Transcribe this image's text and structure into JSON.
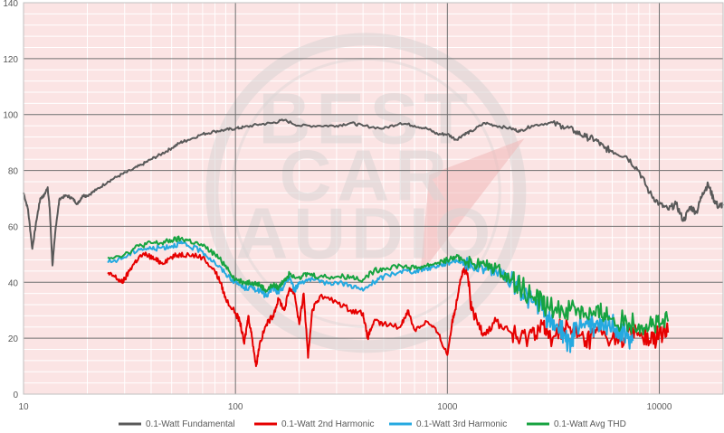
{
  "chart_data": {
    "type": "line",
    "x_scale": "log",
    "xlim": [
      10,
      20000
    ],
    "ylim": [
      0,
      140
    ],
    "x_ticks": [
      "10",
      "100",
      "1000",
      "10000"
    ],
    "y_ticks": [
      "0",
      "20",
      "40",
      "60",
      "80",
      "100",
      "120",
      "140"
    ],
    "grid": true,
    "legend_position": "bottom",
    "colors": {
      "plot_bg": "#fbe4e4",
      "major_grid": "#707070",
      "minor_grid": "#ffffff",
      "watermark": "#d9d4d4"
    },
    "watermark": {
      "lines": [
        "BEST",
        "CAR",
        "AUDIO"
      ]
    },
    "series": [
      {
        "name": "0.1-Watt Fundamental",
        "color": "#595959",
        "points": [
          [
            10,
            72
          ],
          [
            10.5,
            66
          ],
          [
            11,
            52
          ],
          [
            11.5,
            62
          ],
          [
            12,
            70
          ],
          [
            12.5,
            71
          ],
          [
            13,
            74
          ],
          [
            13.3,
            66
          ],
          [
            13.7,
            46
          ],
          [
            14.2,
            60
          ],
          [
            14.8,
            70
          ],
          [
            16,
            71
          ],
          [
            17,
            70
          ],
          [
            18,
            68
          ],
          [
            19,
            71
          ],
          [
            20,
            71
          ],
          [
            22,
            73
          ],
          [
            25,
            76
          ],
          [
            28,
            78
          ],
          [
            32,
            80
          ],
          [
            36,
            82
          ],
          [
            40,
            84
          ],
          [
            45,
            86
          ],
          [
            50,
            88
          ],
          [
            55,
            90
          ],
          [
            60,
            91
          ],
          [
            70,
            93
          ],
          [
            80,
            94
          ],
          [
            90,
            94.5
          ],
          [
            100,
            95
          ],
          [
            110,
            95.5
          ],
          [
            130,
            96.5
          ],
          [
            150,
            97
          ],
          [
            170,
            98
          ],
          [
            200,
            96
          ],
          [
            250,
            96
          ],
          [
            300,
            96
          ],
          [
            350,
            97
          ],
          [
            400,
            96
          ],
          [
            500,
            95
          ],
          [
            600,
            97
          ],
          [
            700,
            96
          ],
          [
            800,
            95
          ],
          [
            900,
            93
          ],
          [
            1000,
            93
          ],
          [
            1100,
            91
          ],
          [
            1200,
            93
          ],
          [
            1300,
            94
          ],
          [
            1500,
            97
          ],
          [
            1700,
            96
          ],
          [
            2000,
            95
          ],
          [
            2200,
            94
          ],
          [
            2500,
            96
          ],
          [
            3000,
            97
          ],
          [
            3500,
            96
          ],
          [
            4000,
            94
          ],
          [
            4500,
            92
          ],
          [
            5000,
            91
          ],
          [
            5500,
            88
          ],
          [
            6000,
            87
          ],
          [
            7000,
            85
          ],
          [
            8000,
            80
          ],
          [
            9000,
            72
          ],
          [
            10000,
            68
          ],
          [
            11000,
            66
          ],
          [
            12000,
            68
          ],
          [
            13000,
            62
          ],
          [
            14000,
            67
          ],
          [
            15000,
            65
          ],
          [
            16000,
            72
          ],
          [
            17000,
            75
          ],
          [
            18000,
            70
          ],
          [
            19000,
            67
          ],
          [
            20000,
            68
          ]
        ]
      },
      {
        "name": "0.1-Watt 2nd Harmonic",
        "color": "#e60000",
        "points": [
          [
            25,
            43
          ],
          [
            27,
            42
          ],
          [
            29,
            40
          ],
          [
            30,
            41
          ],
          [
            32,
            45
          ],
          [
            35,
            49
          ],
          [
            38,
            50
          ],
          [
            42,
            48
          ],
          [
            45,
            47
          ],
          [
            50,
            49
          ],
          [
            55,
            50
          ],
          [
            60,
            50
          ],
          [
            70,
            49
          ],
          [
            80,
            44
          ],
          [
            85,
            40
          ],
          [
            90,
            34
          ],
          [
            100,
            29
          ],
          [
            105,
            26
          ],
          [
            110,
            18
          ],
          [
            115,
            28
          ],
          [
            120,
            20
          ],
          [
            125,
            10
          ],
          [
            130,
            18
          ],
          [
            140,
            25
          ],
          [
            150,
            28
          ],
          [
            160,
            34
          ],
          [
            170,
            30
          ],
          [
            180,
            38
          ],
          [
            190,
            36
          ],
          [
            200,
            25
          ],
          [
            210,
            36
          ],
          [
            220,
            13
          ],
          [
            230,
            30
          ],
          [
            250,
            35
          ],
          [
            300,
            33
          ],
          [
            350,
            30
          ],
          [
            400,
            29
          ],
          [
            420,
            20
          ],
          [
            450,
            26
          ],
          [
            500,
            25
          ],
          [
            600,
            24
          ],
          [
            650,
            30
          ],
          [
            700,
            23
          ],
          [
            800,
            26
          ],
          [
            900,
            22
          ],
          [
            1000,
            14
          ],
          [
            1050,
            25
          ],
          [
            1100,
            32
          ],
          [
            1150,
            41
          ],
          [
            1200,
            45
          ],
          [
            1250,
            42
          ],
          [
            1300,
            30
          ],
          [
            1400,
            25
          ],
          [
            1500,
            22
          ],
          [
            1700,
            26
          ],
          [
            2000,
            22
          ],
          [
            2200,
            19
          ],
          [
            2500,
            22
          ],
          [
            2800,
            25
          ],
          [
            3000,
            20
          ],
          [
            3500,
            24
          ],
          [
            4000,
            22
          ],
          [
            4500,
            19
          ],
          [
            5000,
            22
          ],
          [
            6000,
            20
          ],
          [
            7000,
            21
          ],
          [
            8000,
            22
          ],
          [
            9000,
            19
          ],
          [
            10000,
            21
          ],
          [
            11000,
            22
          ]
        ]
      },
      {
        "name": "0.1-Watt 3rd Harmonic",
        "color": "#25a9e0",
        "points": [
          [
            25,
            47
          ],
          [
            30,
            49
          ],
          [
            35,
            52
          ],
          [
            40,
            52
          ],
          [
            45,
            52.5
          ],
          [
            50,
            53
          ],
          [
            55,
            54
          ],
          [
            60,
            53
          ],
          [
            70,
            51
          ],
          [
            80,
            47
          ],
          [
            90,
            43
          ],
          [
            100,
            40
          ],
          [
            110,
            38
          ],
          [
            120,
            38
          ],
          [
            130,
            37
          ],
          [
            140,
            35
          ],
          [
            150,
            38
          ],
          [
            160,
            36
          ],
          [
            170,
            39
          ],
          [
            180,
            42
          ],
          [
            190,
            37
          ],
          [
            200,
            40
          ],
          [
            220,
            41
          ],
          [
            250,
            40
          ],
          [
            300,
            40
          ],
          [
            350,
            39
          ],
          [
            400,
            37
          ],
          [
            450,
            40
          ],
          [
            500,
            42
          ],
          [
            600,
            44
          ],
          [
            700,
            44
          ],
          [
            800,
            45
          ],
          [
            900,
            46
          ],
          [
            1000,
            47
          ],
          [
            1100,
            48
          ],
          [
            1200,
            47
          ],
          [
            1300,
            46
          ],
          [
            1500,
            45
          ],
          [
            1700,
            44
          ],
          [
            2000,
            40
          ],
          [
            2200,
            38
          ],
          [
            2500,
            33
          ],
          [
            2800,
            30
          ],
          [
            3000,
            26
          ],
          [
            3300,
            25
          ],
          [
            3600,
            21
          ],
          [
            3800,
            15
          ],
          [
            4000,
            25
          ],
          [
            4500,
            26
          ],
          [
            5000,
            24
          ],
          [
            5500,
            23
          ],
          [
            6000,
            26
          ],
          [
            6500,
            22
          ],
          [
            7000,
            21
          ],
          [
            7500,
            19
          ]
        ]
      },
      {
        "name": "0.1-Watt Avg THD",
        "color": "#17a340",
        "points": [
          [
            25,
            49
          ],
          [
            30,
            50
          ],
          [
            35,
            53
          ],
          [
            40,
            54
          ],
          [
            45,
            54
          ],
          [
            50,
            55
          ],
          [
            55,
            55.5
          ],
          [
            60,
            55
          ],
          [
            70,
            53
          ],
          [
            80,
            50
          ],
          [
            90,
            46
          ],
          [
            100,
            41
          ],
          [
            110,
            40
          ],
          [
            120,
            40
          ],
          [
            130,
            39
          ],
          [
            140,
            37
          ],
          [
            150,
            39
          ],
          [
            160,
            38
          ],
          [
            170,
            41
          ],
          [
            180,
            43
          ],
          [
            200,
            42
          ],
          [
            220,
            43
          ],
          [
            250,
            42
          ],
          [
            300,
            42
          ],
          [
            350,
            42
          ],
          [
            400,
            41
          ],
          [
            450,
            44
          ],
          [
            500,
            45
          ],
          [
            600,
            46
          ],
          [
            700,
            45
          ],
          [
            800,
            46
          ],
          [
            900,
            47
          ],
          [
            1000,
            48
          ],
          [
            1100,
            49
          ],
          [
            1200,
            48
          ],
          [
            1300,
            47
          ],
          [
            1500,
            46
          ],
          [
            1700,
            45
          ],
          [
            2000,
            41
          ],
          [
            2200,
            39
          ],
          [
            2500,
            35
          ],
          [
            2800,
            33
          ],
          [
            3000,
            31
          ],
          [
            3500,
            30
          ],
          [
            4000,
            31
          ],
          [
            4500,
            29
          ],
          [
            5000,
            28
          ],
          [
            5500,
            29
          ],
          [
            6000,
            27
          ],
          [
            7000,
            26
          ],
          [
            8000,
            25
          ],
          [
            9000,
            25
          ],
          [
            10000,
            24
          ],
          [
            11000,
            26
          ]
        ]
      }
    ]
  }
}
